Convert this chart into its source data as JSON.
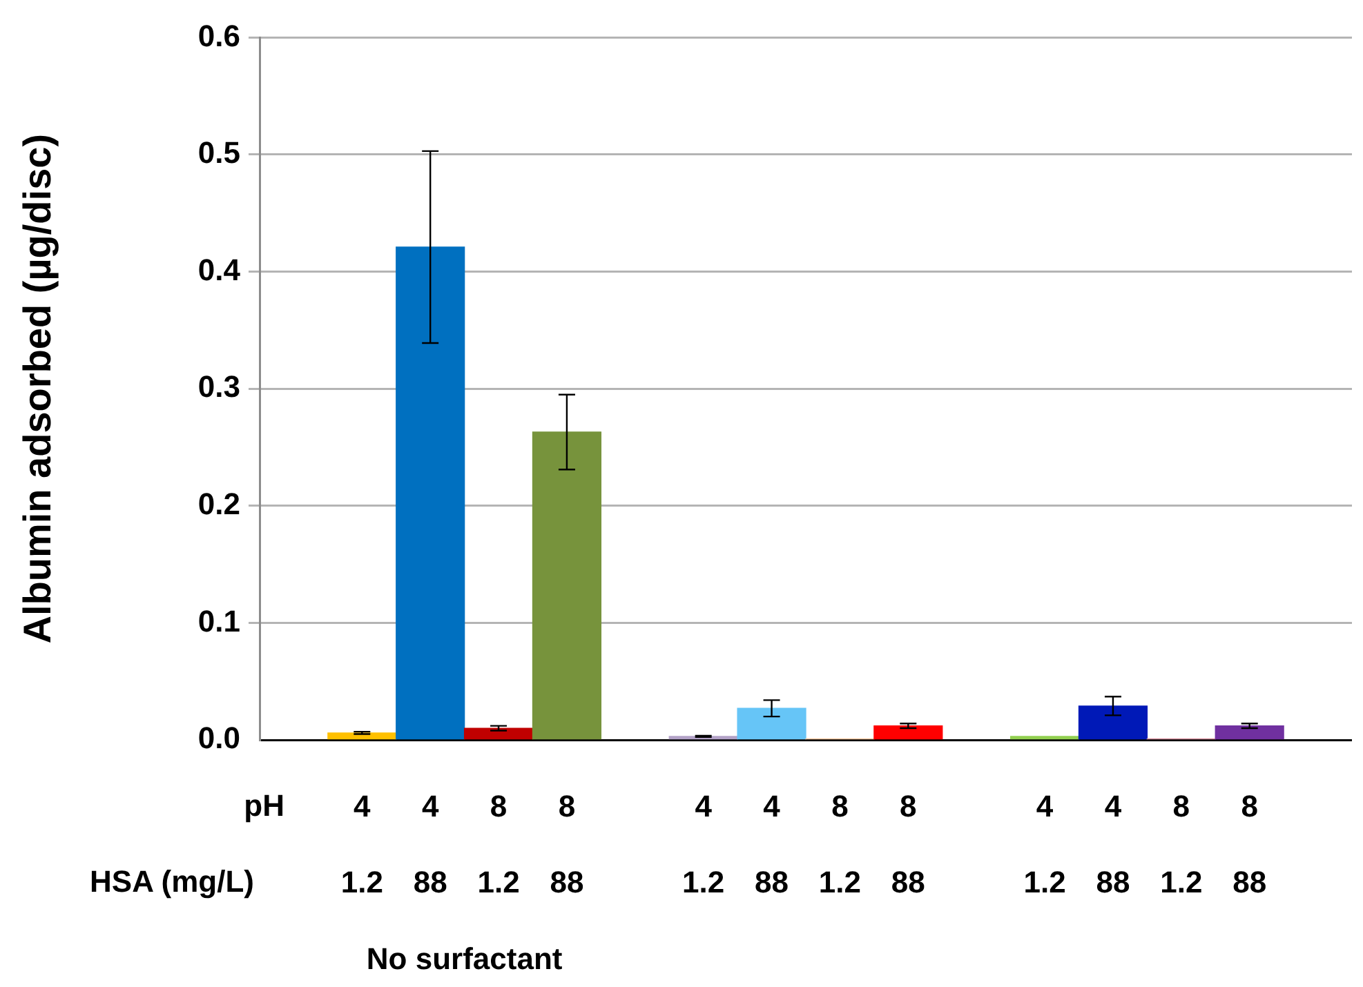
{
  "chart_data": {
    "type": "bar",
    "ylabel": "Albumin adsorbed (µg/disc)",
    "categories": [
      null,
      "4\n1.2",
      "4\n88",
      "8\n1.2",
      "8\n88",
      null,
      "4\n1.2",
      "4\n88",
      "8\n1.2",
      "8\n88",
      null,
      "4\n1.2",
      "4\n88",
      "8\n1.2",
      "8\n88",
      null
    ],
    "values": [
      null,
      0.006,
      0.421,
      0.01,
      0.263,
      null,
      0.003,
      0.027,
      0.001,
      0.012,
      null,
      0.003,
      0.029,
      0.001,
      0.012,
      null
    ],
    "errors": [
      null,
      0.001,
      0.082,
      0.002,
      0.032,
      null,
      0.0005,
      0.007,
      null,
      0.002,
      null,
      null,
      0.008,
      null,
      0.002,
      null
    ],
    "colors": [
      "#ffffff",
      "#ffc000",
      "#0070c0",
      "#c00000",
      "#77933c",
      "#ffffff",
      "#b3a2c7",
      "#66c5f7",
      "#f5c8a0",
      "#ff0000",
      "#ffffff",
      "#92d050",
      "#0019b7",
      "#d7909e",
      "#7030a0",
      "#d7e4bd"
    ],
    "ylim": [
      0,
      0.6
    ],
    "yticks": [
      {
        "value": 0,
        "label": "0.0"
      },
      0.1,
      0.2,
      0.3,
      0.4,
      0.5,
      0.6
    ],
    "grid": "y",
    "legend": false,
    "annotations": [
      "pH",
      "HSA (mg/L)",
      "No surfactant"
    ]
  }
}
